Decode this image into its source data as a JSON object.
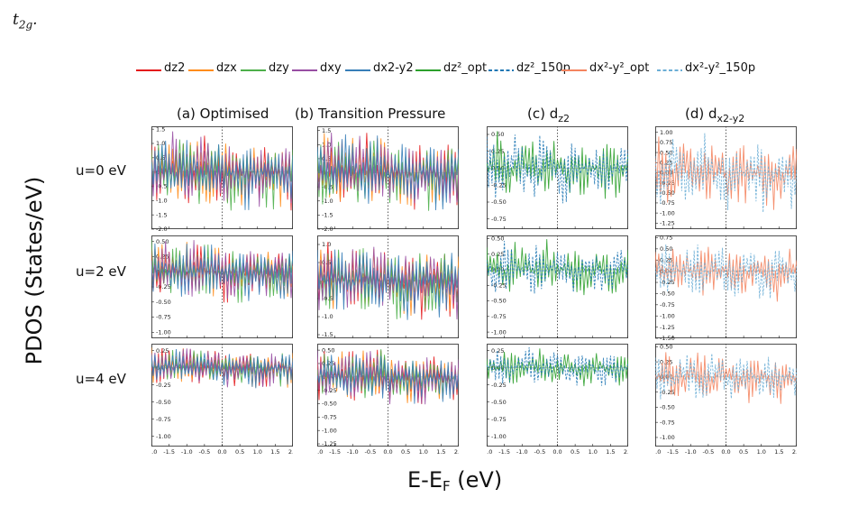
{
  "lead_text": "t",
  "lead_sub": "2g",
  "lead_tail": ".",
  "legend": [
    {
      "label": "dz2",
      "color": "#e41a1c",
      "dash": false
    },
    {
      "label": "dzx",
      "color": "#ff8c1a",
      "dash": false
    },
    {
      "label": "dzy",
      "color": "#4daf4a",
      "dash": false
    },
    {
      "label": "dxy",
      "color": "#984ea3",
      "dash": false
    },
    {
      "label": "dx2-y2",
      "color": "#377eb8",
      "dash": false
    },
    {
      "label": "dz²_opt",
      "color": "#2ca02c",
      "dash": false
    },
    {
      "label": "dz²_150p",
      "color": "#1f77b4",
      "dash": true
    },
    {
      "label": "dx²-y²_opt",
      "color": "#f4845f",
      "dash": false
    },
    {
      "label": "dx²-y²_150p",
      "color": "#6baed6",
      "dash": true
    }
  ],
  "column_titles": [
    "(a) Optimised",
    "(b) Transition Pressure",
    "(c) dz2",
    "(d) dx2-y2"
  ],
  "row_labels": [
    "u=0 eV",
    "u=2 eV",
    "u=4 eV"
  ],
  "y_axis_label": "PDOS (States/eV)",
  "x_axis_label_main": "E-E",
  "x_axis_label_sub": "F",
  "x_axis_label_unit": " (eV)",
  "chart_data": {
    "type": "line",
    "xlim": [
      -2.0,
      2.0
    ],
    "x_ticks": [
      "-2.0",
      "-1.5",
      "-1.0",
      "-0.5",
      "0.0",
      "0.5",
      "1.0",
      "1.5",
      "2.0"
    ],
    "fermi_level": 0.0,
    "panels": [
      {
        "column": "(a) Optimised",
        "row": "u=0 eV",
        "ylim": [
          -2.0,
          1.6
        ],
        "y_ticks": [
          "-2.0",
          "-1.5",
          "-1.0",
          "-0.5",
          "0.0",
          "0.5",
          "1.0",
          "1.5"
        ],
        "series": [
          "dz2",
          "dzx",
          "dzy",
          "dxy",
          "dx2-y2"
        ]
      },
      {
        "column": "(b) Transition Pressure",
        "row": "u=0 eV",
        "ylim": [
          -2.0,
          1.65
        ],
        "y_ticks": [
          "-2.0",
          "-1.5",
          "-1.0",
          "-0.5",
          "0.0",
          "0.5",
          "1.0",
          "1.5"
        ],
        "series": [
          "dz2",
          "dzx",
          "dzy",
          "dxy",
          "dx2-y2"
        ]
      },
      {
        "column": "(c) dz2",
        "row": "u=0 eV",
        "ylim": [
          -0.9,
          0.62
        ],
        "y_ticks": [
          "-0.75",
          "-0.50",
          "-0.25",
          "0.00",
          "0.25",
          "0.50"
        ],
        "series": [
          "dz²_opt",
          "dz²_150p"
        ]
      },
      {
        "column": "(d) dx2-y2",
        "row": "u=0 eV",
        "ylim": [
          -1.4,
          1.15
        ],
        "y_ticks": [
          "-1.25",
          "-1.00",
          "-0.75",
          "-0.50",
          "-0.25",
          "0.00",
          "0.25",
          "0.50",
          "0.75",
          "1.00"
        ],
        "series": [
          "dx²-y²_opt",
          "dx²-y²_150p"
        ]
      },
      {
        "column": "(a) Optimised",
        "row": "u=2 eV",
        "ylim": [
          -1.1,
          0.6
        ],
        "y_ticks": [
          "-1.00",
          "-0.75",
          "-0.50",
          "-0.25",
          "0.00",
          "0.25",
          "0.50"
        ],
        "series": [
          "dz2",
          "dzx",
          "dzy",
          "dxy",
          "dx2-y2"
        ]
      },
      {
        "column": "(b) Transition Pressure",
        "row": "u=2 eV",
        "ylim": [
          -1.6,
          1.25
        ],
        "y_ticks": [
          "-1.5",
          "-1.0",
          "-0.5",
          "0.0",
          "0.5",
          "1.0"
        ],
        "series": [
          "dz2",
          "dzx",
          "dzy",
          "dxy",
          "dx2-y2"
        ]
      },
      {
        "column": "(c) dz2",
        "row": "u=2 eV",
        "ylim": [
          -1.1,
          0.55
        ],
        "y_ticks": [
          "-1.00",
          "-0.75",
          "-0.50",
          "-0.25",
          "0.00",
          "0.25",
          "0.50"
        ],
        "series": [
          "dz²_opt",
          "dz²_150p"
        ]
      },
      {
        "column": "(d) dx2-y2",
        "row": "u=2 eV",
        "ylim": [
          -1.5,
          0.8
        ],
        "y_ticks": [
          "-1.50",
          "-1.25",
          "-1.00",
          "-0.75",
          "-0.50",
          "-0.25",
          "0.00",
          "0.25",
          "0.50",
          "0.75"
        ],
        "series": [
          "dx²-y²_opt",
          "dx²-y²_150p"
        ]
      },
      {
        "column": "(a) Optimised",
        "row": "u=4 eV",
        "ylim": [
          -1.15,
          0.35
        ],
        "y_ticks": [
          "-1.00",
          "-0.75",
          "-0.50",
          "-0.25",
          "0.00",
          "0.25"
        ],
        "series": [
          "dz2",
          "dzx",
          "dzy",
          "dxy",
          "dx2-y2"
        ]
      },
      {
        "column": "(b) Transition Pressure",
        "row": "u=4 eV",
        "ylim": [
          -1.3,
          0.62
        ],
        "y_ticks": [
          "-1.25",
          "-1.00",
          "-0.75",
          "-0.50",
          "-0.25",
          "0.00",
          "0.25",
          "0.50"
        ],
        "series": [
          "dz2",
          "dzx",
          "dzy",
          "dxy",
          "dx2-y2"
        ]
      },
      {
        "column": "(c) dz2",
        "row": "u=4 eV",
        "ylim": [
          -1.15,
          0.35
        ],
        "y_ticks": [
          "-1.00",
          "-0.75",
          "-0.50",
          "-0.25",
          "0.00",
          "0.25"
        ],
        "series": [
          "dz²_opt",
          "dz²_150p"
        ]
      },
      {
        "column": "(d) dx2-y2",
        "row": "u=4 eV",
        "ylim": [
          -1.15,
          0.55
        ],
        "y_ticks": [
          "-1.00",
          "-0.75",
          "-0.50",
          "-0.25",
          "0.00",
          "0.25",
          "0.50"
        ],
        "series": [
          "dx²-y²_opt",
          "dx²-y²_150p"
        ]
      }
    ]
  }
}
